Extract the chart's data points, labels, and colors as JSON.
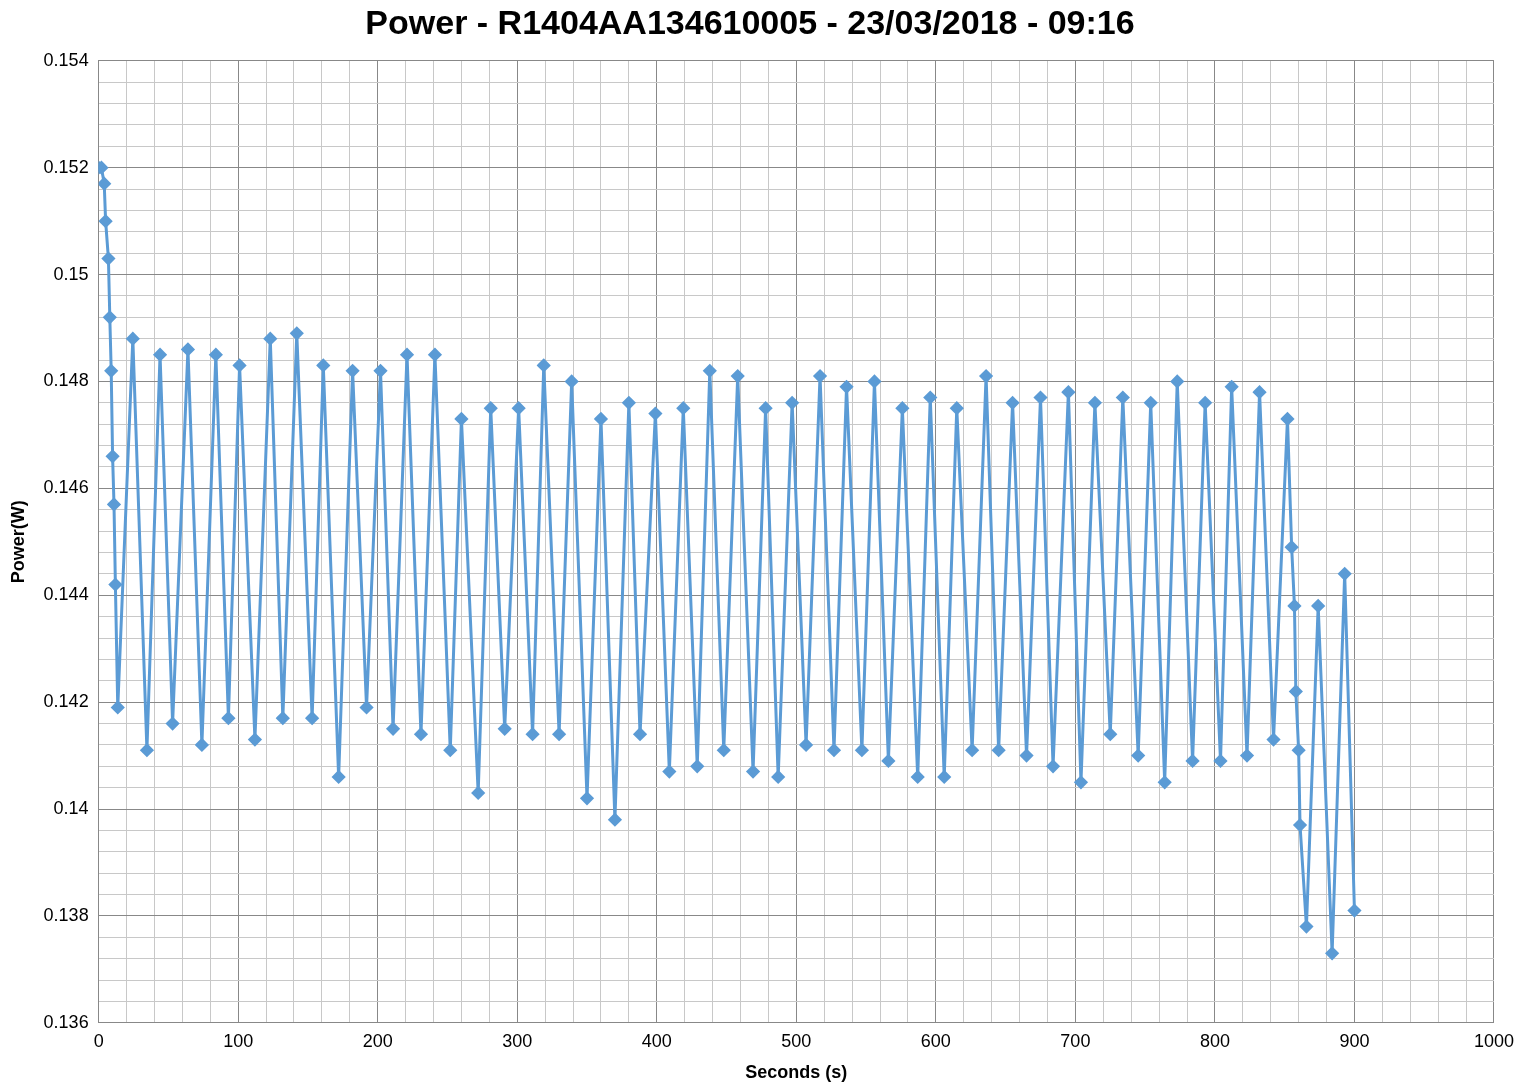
{
  "chart_data": {
    "type": "line",
    "title": "Power - R1404AA134610005 - 23/03/2018 - 09:16",
    "xlabel": "Seconds (s)",
    "ylabel": "Power(W)",
    "x": [
      0,
      2,
      4,
      5,
      7,
      8,
      9,
      10,
      11,
      12,
      13.7,
      24.5,
      34.6,
      44,
      53,
      64,
      74,
      84,
      93,
      101,
      112,
      123,
      132,
      142,
      153,
      161,
      172,
      182,
      192,
      202,
      211,
      221,
      231,
      241,
      252,
      260,
      272,
      281,
      291,
      301,
      311,
      319,
      330,
      339,
      350,
      360,
      370,
      380,
      388,
      399,
      409,
      419,
      429,
      438,
      448,
      458,
      469,
      478,
      487,
      497,
      507,
      517,
      527,
      536,
      547,
      556,
      566,
      576,
      587,
      596,
      606,
      615,
      626,
      636,
      645,
      655,
      665,
      675,
      684,
      695,
      704,
      714,
      725,
      734,
      745,
      754,
      764,
      773,
      784,
      793,
      804,
      812,
      823,
      832,
      842,
      852,
      855,
      857,
      858,
      860,
      861,
      865.6,
      874,
      884,
      893,
      900
    ],
    "series": [
      {
        "color": "#5b9bd5",
        "values": [
          0.152,
          0.152,
          0.1517,
          0.151,
          0.1503,
          0.1492,
          0.1482,
          0.1466,
          0.1457,
          0.1442,
          0.1419,
          0.1488,
          0.1411,
          0.1485,
          0.1416,
          0.1486,
          0.1412,
          0.1485,
          0.1417,
          0.1483,
          0.1413,
          0.1488,
          0.1417,
          0.1489,
          0.1417,
          0.1483,
          0.1406,
          0.1482,
          0.1419,
          0.1482,
          0.1415,
          0.1485,
          0.1414,
          0.1485,
          0.1411,
          0.1473,
          0.1403,
          0.1475,
          0.1415,
          0.1475,
          0.1414,
          0.1483,
          0.1414,
          0.148,
          0.1402,
          0.1473,
          0.1398,
          0.1476,
          0.1414,
          0.1474,
          0.1407,
          0.1475,
          0.1408,
          0.1482,
          0.1411,
          0.1481,
          0.1407,
          0.1475,
          0.1406,
          0.1476,
          0.1412,
          0.1481,
          0.1411,
          0.1479,
          0.1411,
          0.148,
          0.1409,
          0.1475,
          0.1406,
          0.1477,
          0.1406,
          0.1475,
          0.1411,
          0.1481,
          0.1411,
          0.1476,
          0.141,
          0.1477,
          0.1408,
          0.1478,
          0.1405,
          0.1476,
          0.1414,
          0.1477,
          0.141,
          0.1476,
          0.1405,
          0.148,
          0.1409,
          0.1476,
          0.1409,
          0.1479,
          0.141,
          0.1478,
          0.1413,
          0.1473,
          0.1449,
          0.1438,
          0.1422,
          0.1411,
          0.1397,
          0.1378,
          0.1438,
          0.1373,
          0.1444,
          0.1381
        ]
      }
    ],
    "xlim": [
      0,
      1000
    ],
    "xticks": [
      0,
      {
        "value": 20,
        "label": null
      },
      {
        "value": 40,
        "label": null
      },
      {
        "value": 60,
        "label": null
      },
      {
        "value": 80,
        "label": null
      },
      100,
      {
        "value": 120,
        "label": null
      },
      {
        "value": 140,
        "label": null
      },
      {
        "value": 160,
        "label": null
      },
      {
        "value": 180,
        "label": null
      },
      200,
      {
        "value": 220,
        "label": null
      },
      {
        "value": 240,
        "label": null
      },
      {
        "value": 260,
        "label": null
      },
      {
        "value": 280,
        "label": null
      },
      300,
      {
        "value": 320,
        "label": null
      },
      {
        "value": 340,
        "label": null
      },
      {
        "value": 360,
        "label": null
      },
      {
        "value": 380,
        "label": null
      },
      400,
      {
        "value": 420,
        "label": null
      },
      {
        "value": 440,
        "label": null
      },
      {
        "value": 460,
        "label": null
      },
      {
        "value": 480,
        "label": null
      },
      500,
      {
        "value": 520,
        "label": null
      },
      {
        "value": 540,
        "label": null
      },
      {
        "value": 560,
        "label": null
      },
      {
        "value": 580,
        "label": null
      },
      600,
      {
        "value": 620,
        "label": null
      },
      {
        "value": 640,
        "label": null
      },
      {
        "value": 660,
        "label": null
      },
      {
        "value": 680,
        "label": null
      },
      700,
      {
        "value": 720,
        "label": null
      },
      {
        "value": 740,
        "label": null
      },
      {
        "value": 760,
        "label": null
      },
      {
        "value": 780,
        "label": null
      },
      800,
      {
        "value": 820,
        "label": null
      },
      {
        "value": 840,
        "label": null
      },
      {
        "value": 860,
        "label": null
      },
      {
        "value": 880,
        "label": null
      },
      900,
      {
        "value": 920,
        "label": null
      },
      {
        "value": 940,
        "label": null
      },
      {
        "value": 960,
        "label": null
      },
      {
        "value": 980,
        "label": null
      },
      1000
    ],
    "ylim": [
      0.136,
      0.154
    ],
    "yticks": [
      0.136,
      {
        "value": 0.1364,
        "label": null
      },
      {
        "value": 0.1368,
        "label": null
      },
      {
        "value": 0.1372,
        "label": null
      },
      {
        "value": 0.1376,
        "label": null
      },
      0.138,
      {
        "value": 0.1384,
        "label": null
      },
      {
        "value": 0.1388,
        "label": null
      },
      {
        "value": 0.1392,
        "label": null
      },
      {
        "value": 0.1396,
        "label": null
      },
      0.14,
      {
        "value": 0.1404,
        "label": null
      },
      {
        "value": 0.1408,
        "label": null
      },
      {
        "value": 0.1412,
        "label": null
      },
      {
        "value": 0.1416,
        "label": null
      },
      0.142,
      {
        "value": 0.1424,
        "label": null
      },
      {
        "value": 0.1428,
        "label": null
      },
      {
        "value": 0.1432,
        "label": null
      },
      {
        "value": 0.1436,
        "label": null
      },
      0.144,
      {
        "value": 0.1444,
        "label": null
      },
      {
        "value": 0.1448,
        "label": null
      },
      {
        "value": 0.1452,
        "label": null
      },
      {
        "value": 0.1456,
        "label": null
      },
      0.146,
      {
        "value": 0.1464,
        "label": null
      },
      {
        "value": 0.1468,
        "label": null
      },
      {
        "value": 0.1472,
        "label": null
      },
      {
        "value": 0.1476,
        "label": null
      },
      0.148,
      {
        "value": 0.1484,
        "label": null
      },
      {
        "value": 0.1488,
        "label": null
      },
      {
        "value": 0.1492,
        "label": null
      },
      {
        "value": 0.1496,
        "label": null
      },
      0.15,
      {
        "value": 0.1504,
        "label": null
      },
      {
        "value": 0.1508,
        "label": null
      },
      {
        "value": 0.1512,
        "label": null
      },
      {
        "value": 0.1516,
        "label": null
      },
      0.152,
      {
        "value": 0.1524,
        "label": null
      },
      {
        "value": 0.1528,
        "label": null
      },
      {
        "value": 0.1532,
        "label": null
      },
      {
        "value": 0.1536,
        "label": null
      },
      0.154
    ],
    "grid": true,
    "legend": false,
    "marker": "diamond",
    "line_style": "solid"
  }
}
